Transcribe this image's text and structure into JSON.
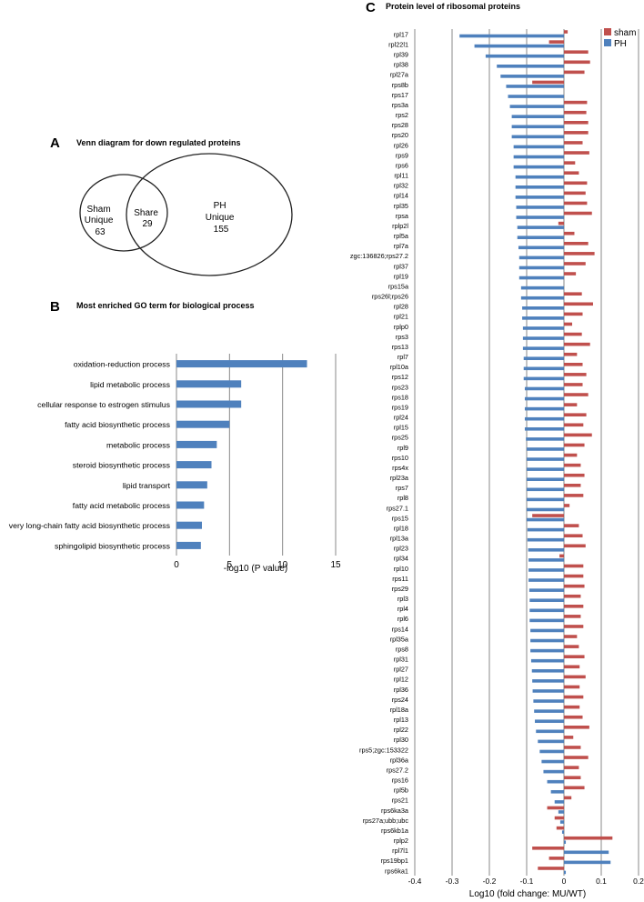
{
  "panels": {
    "A": {
      "letter": "A",
      "title": "Venn diagram for down regulated proteins"
    },
    "B": {
      "letter": "B",
      "title": "Most enriched GO term for biological process"
    },
    "C": {
      "letter": "C",
      "title": "Protein level of ribosomal proteins"
    }
  },
  "colors": {
    "sham": "#c0504d",
    "ph": "#4f81bd",
    "grid": "#888888",
    "text": "#222222"
  },
  "chart_data": [
    {
      "type": "venn",
      "sets": [
        {
          "lines": [
            "Sham",
            "Unique",
            "63"
          ]
        },
        {
          "lines": [
            "PH",
            "Unique",
            "155"
          ]
        }
      ],
      "intersection": {
        "lines": [
          "Share",
          "29"
        ]
      }
    },
    {
      "type": "bar",
      "orientation": "horizontal",
      "categories": [
        "oxidation-reduction process",
        "lipid metabolic process",
        "cellular response to estrogen stimulus",
        "fatty acid biosynthetic process",
        "metabolic process",
        "steroid biosynthetic process",
        "lipid transport",
        "fatty acid metabolic process",
        "very long-chain fatty acid biosynthetic process",
        "sphingolipid biosynthetic process"
      ],
      "values": [
        12.3,
        6.1,
        6.1,
        5.0,
        3.8,
        3.3,
        2.9,
        2.6,
        2.4,
        2.3
      ],
      "xlabel": "-log10 (P value)",
      "xlim": [
        0,
        15
      ],
      "ticks": [
        "0",
        "5",
        "10",
        "15"
      ],
      "grid": true
    },
    {
      "type": "bar",
      "orientation": "horizontal",
      "categories": [
        "rpl17",
        "rpl22l1",
        "rpl39",
        "rpl38",
        "rpl27a",
        "rps8b",
        "rps17",
        "rps3a",
        "rps2",
        "rps28",
        "rps20",
        "rpl26",
        "rps9",
        "rps6",
        "rpl11",
        "rpl32",
        "rpl14",
        "rpl35",
        "rpsa",
        "rplp2l",
        "rpl5a",
        "rpl7a",
        "zgc:136826;rps27.2",
        "rpl37",
        "rpl19",
        "rps15a",
        "rps26l;rps26",
        "rpl28",
        "rpl21",
        "rplp0",
        "rps3",
        "rps13",
        "rpl7",
        "rpl10a",
        "rps12",
        "rps23",
        "rps18",
        "rps19",
        "rpl24",
        "rpl15",
        "rps25",
        "rpl9",
        "rps10",
        "rps4x",
        "rpl23a",
        "rps7",
        "rpl8",
        "rps27.1",
        "rps15",
        "rpl18",
        "rpl13a",
        "rpl23",
        "rpl34",
        "rpl10",
        "rps11",
        "rps29",
        "rpl3",
        "rpl4",
        "rpl6",
        "rps14",
        "rpl35a",
        "rps8",
        "rpl31",
        "rpl27",
        "rpl12",
        "rpl36",
        "rps24",
        "rpl18a",
        "rpl13",
        "rpl22",
        "rpl30",
        "rps5;zgc:153322",
        "rpl36a",
        "rps27.2",
        "rps16",
        "rpl5b",
        "rps21",
        "rps6ka3a",
        "rps27a;ubb;ubc",
        "rps6kb1a",
        "rplp2",
        "rpl7l1",
        "rps19bp1",
        "rps6ka1"
      ],
      "series": [
        {
          "name": "sham",
          "values": [
            0.01,
            -0.04,
            0.065,
            0.07,
            0.055,
            -0.085,
            0.0,
            0.062,
            0.06,
            0.065,
            0.065,
            0.05,
            0.068,
            0.03,
            0.04,
            0.062,
            0.058,
            0.062,
            0.075,
            -0.015,
            0.028,
            0.065,
            0.082,
            0.058,
            0.032,
            0.0,
            0.048,
            0.078,
            0.05,
            0.022,
            0.048,
            0.07,
            0.035,
            0.05,
            0.06,
            0.05,
            0.065,
            0.035,
            0.06,
            0.052,
            0.075,
            0.055,
            0.035,
            0.045,
            0.055,
            0.045,
            0.052,
            0.015,
            -0.085,
            0.04,
            0.05,
            0.058,
            -0.012,
            0.052,
            0.052,
            0.055,
            0.045,
            0.052,
            0.045,
            0.052,
            0.035,
            0.04,
            0.055,
            0.042,
            0.058,
            0.042,
            0.052,
            0.042,
            0.05,
            0.068,
            0.025,
            0.045,
            0.065,
            0.04,
            0.045,
            0.055,
            0.02,
            -0.045,
            -0.025,
            -0.02,
            0.13,
            -0.085,
            -0.04,
            -0.07
          ]
        },
        {
          "name": "PH",
          "values": [
            -0.28,
            -0.24,
            -0.21,
            -0.18,
            -0.17,
            -0.155,
            -0.15,
            -0.145,
            -0.14,
            -0.14,
            -0.14,
            -0.135,
            -0.135,
            -0.135,
            -0.13,
            -0.13,
            -0.13,
            -0.128,
            -0.128,
            -0.125,
            -0.125,
            -0.122,
            -0.12,
            -0.12,
            -0.12,
            -0.115,
            -0.115,
            -0.112,
            -0.112,
            -0.11,
            -0.11,
            -0.11,
            -0.108,
            -0.108,
            -0.108,
            -0.105,
            -0.105,
            -0.105,
            -0.105,
            -0.105,
            -0.102,
            -0.1,
            -0.1,
            -0.1,
            -0.1,
            -0.1,
            -0.1,
            -0.1,
            -0.1,
            -0.098,
            -0.098,
            -0.096,
            -0.095,
            -0.095,
            -0.095,
            -0.093,
            -0.092,
            -0.092,
            -0.092,
            -0.09,
            -0.09,
            -0.09,
            -0.088,
            -0.086,
            -0.085,
            -0.084,
            -0.082,
            -0.08,
            -0.078,
            -0.075,
            -0.07,
            -0.065,
            -0.06,
            -0.055,
            -0.045,
            -0.035,
            -0.025,
            -0.015,
            -0.01,
            -0.005,
            0.005,
            0.12,
            0.125,
            0.005
          ]
        }
      ],
      "xlabel": "Log10 (fold change: MU/WT)",
      "xlim": [
        -0.4,
        0.2
      ],
      "ticks": [
        "-0.4",
        "-0.3",
        "-0.2",
        "-0.1",
        "0",
        "0.1",
        "0.2"
      ],
      "legend": {
        "position": "top-right",
        "labels": [
          "sham",
          "PH"
        ]
      },
      "grid": true
    }
  ]
}
